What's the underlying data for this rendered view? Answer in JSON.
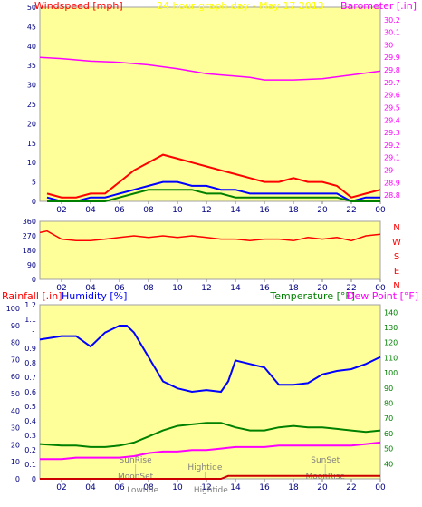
{
  "top_panel": {
    "title": "24 hour graph day - May 17 2013",
    "left_label": "Windspeed [mph]",
    "right_label": "Barometer [.in]"
  },
  "direction_panel": {
    "compass_labels": [
      "N",
      "W",
      "S",
      "E",
      "N"
    ]
  },
  "bottom_panel": {
    "rain_label": "Rainfall [.in]",
    "humidity_label": "Humidity [%]",
    "temperature_label": "Temperature [°F]",
    "dewpoint_label": "Dew Point [°F]"
  },
  "chart_data": [
    {
      "type": "line",
      "x_ticks": [
        "02",
        "04",
        "06",
        "08",
        "10",
        "12",
        "14",
        "16",
        "18",
        "20",
        "22",
        "00"
      ],
      "y_left_ticks": [
        "0",
        "5",
        "10",
        "15",
        "20",
        "25",
        "30",
        "35",
        "40",
        "45",
        "50"
      ],
      "y_right_ticks": [
        "28.8",
        "28.9",
        "29",
        "29.1",
        "29.2",
        "29.3",
        "29.4",
        "29.5",
        "29.6",
        "29.7",
        "29.8",
        "29.9",
        "30",
        "30.1",
        "30.2"
      ],
      "ylim_left": [
        0,
        50
      ],
      "ylim_right": [
        28.75,
        30.3
      ],
      "xlim": [
        0.5,
        24
      ],
      "series": [
        {
          "color": "#ff0000",
          "x": [
            1,
            2,
            3,
            4,
            5,
            6,
            7,
            8,
            9,
            10,
            11,
            12,
            13,
            14,
            15,
            16,
            17,
            18,
            19,
            20,
            21,
            22,
            23,
            24
          ],
          "values": [
            2,
            1,
            1,
            2,
            2,
            5,
            8,
            10,
            12,
            11,
            10,
            9,
            8,
            7,
            6,
            5,
            5,
            6,
            5,
            5,
            4,
            1,
            2,
            3
          ]
        },
        {
          "color": "#0000ff",
          "x": [
            1,
            2,
            3,
            4,
            5,
            6,
            7,
            8,
            9,
            10,
            11,
            12,
            13,
            14,
            15,
            16,
            17,
            18,
            19,
            20,
            21,
            22,
            23,
            24
          ],
          "values": [
            1,
            0,
            0,
            1,
            1,
            2,
            3,
            4,
            5,
            5,
            4,
            4,
            3,
            3,
            2,
            2,
            2,
            2,
            2,
            2,
            2,
            0,
            1,
            1
          ]
        },
        {
          "color": "#008000",
          "x": [
            1,
            2,
            3,
            4,
            5,
            6,
            7,
            8,
            9,
            10,
            11,
            12,
            13,
            14,
            15,
            16,
            17,
            18,
            19,
            20,
            21,
            22,
            23,
            24
          ],
          "values": [
            0,
            0,
            0,
            0,
            0,
            1,
            2,
            3,
            3,
            3,
            3,
            2,
            2,
            1,
            1,
            1,
            1,
            1,
            1,
            1,
            1,
            0,
            0,
            0
          ]
        },
        {
          "color": "#ff00ff",
          "axis": "right",
          "x": [
            0.5,
            2,
            4,
            6,
            8,
            10,
            12,
            14,
            15,
            16,
            18,
            20,
            22,
            24
          ],
          "values": [
            29.9,
            29.89,
            29.87,
            29.86,
            29.84,
            29.81,
            29.77,
            29.75,
            29.74,
            29.72,
            29.72,
            29.73,
            29.76,
            29.79
          ]
        }
      ]
    },
    {
      "type": "line",
      "x_ticks": [
        "02",
        "04",
        "06",
        "08",
        "10",
        "12",
        "14",
        "16",
        "18",
        "20",
        "22",
        "00"
      ],
      "y_left_ticks": [
        "0",
        "90",
        "180",
        "270",
        "360"
      ],
      "ylim": [
        0,
        360
      ],
      "xlim": [
        0.5,
        24
      ],
      "series": [
        {
          "color": "#ff0000",
          "x": [
            0.5,
            1,
            2,
            3,
            4,
            5,
            6,
            7,
            8,
            9,
            10,
            11,
            12,
            13,
            14,
            15,
            16,
            17,
            18,
            19,
            20,
            21,
            22,
            23,
            24
          ],
          "values": [
            290,
            300,
            250,
            240,
            240,
            250,
            260,
            270,
            260,
            270,
            260,
            270,
            260,
            250,
            250,
            240,
            250,
            250,
            240,
            260,
            250,
            260,
            240,
            270,
            280
          ]
        }
      ]
    },
    {
      "type": "line",
      "x_ticks": [
        "02",
        "04",
        "06",
        "08",
        "10",
        "12",
        "14",
        "16",
        "18",
        "20",
        "22",
        "00"
      ],
      "y_left_ticks": [
        "0",
        "0.1",
        "0.2",
        "0.3",
        "0.4",
        "0.5",
        "0.6",
        "0.7",
        "0.8",
        "0.9",
        "1",
        "1.1",
        "1.2"
      ],
      "y_outer_ticks": [
        "0",
        "10",
        "20",
        "30",
        "40",
        "50",
        "60",
        "70",
        "80",
        "90",
        "100"
      ],
      "y_right_ticks": [
        "40",
        "50",
        "60",
        "70",
        "80",
        "90",
        "100",
        "110",
        "120",
        "130",
        "140"
      ],
      "ylim_left": [
        0,
        1.2
      ],
      "ylim_right": [
        30,
        145
      ],
      "xlim": [
        0.5,
        24
      ],
      "annotations": [
        "SunRise",
        "MoonSet",
        "Lowtide",
        "Hightide",
        "Hightide",
        "SunSet",
        "MoonRise"
      ],
      "series": [
        {
          "color": "#0000ff",
          "x": [
            0.5,
            2,
            3,
            4,
            5,
            6,
            6.5,
            7,
            8,
            9,
            10,
            11,
            12,
            13,
            13.5,
            14,
            15,
            16,
            17,
            18,
            19,
            20,
            21,
            22,
            23,
            24
          ],
          "values": [
            80,
            82,
            82,
            76,
            84,
            88,
            88,
            84,
            70,
            56,
            52,
            50,
            51,
            50,
            56,
            68,
            66,
            64,
            54,
            54,
            55,
            60,
            62,
            63,
            66,
            70
          ]
        },
        {
          "color": "#008000",
          "axis": "right",
          "x": [
            0.5,
            2,
            3,
            4,
            5,
            6,
            7,
            8,
            9,
            10,
            11,
            12,
            13,
            14,
            15,
            16,
            17,
            18,
            19,
            20,
            21,
            22,
            23,
            24
          ],
          "values": [
            53,
            52,
            52,
            51,
            51,
            52,
            54,
            58,
            62,
            65,
            66,
            67,
            67,
            64,
            62,
            62,
            64,
            65,
            64,
            64,
            63,
            62,
            61,
            62
          ]
        },
        {
          "color": "#ff00ff",
          "axis": "right",
          "x": [
            0.5,
            2,
            3,
            4,
            5,
            6,
            7,
            8,
            9,
            10,
            11,
            12,
            13,
            14,
            15,
            16,
            17,
            18,
            19,
            20,
            21,
            22,
            23,
            24
          ],
          "values": [
            43,
            43,
            44,
            44,
            44,
            44,
            45,
            47,
            48,
            48,
            49,
            49,
            50,
            51,
            51,
            51,
            52,
            52,
            52,
            52,
            52,
            52,
            53,
            54
          ]
        },
        {
          "color": "#cc0000",
          "x": [
            0.5,
            4,
            8,
            12,
            13,
            13.5,
            14,
            18,
            22,
            24
          ],
          "values": [
            0,
            0,
            0,
            0,
            0,
            0.02,
            0.02,
            0.02,
            0.02,
            0.02
          ]
        }
      ]
    }
  ]
}
